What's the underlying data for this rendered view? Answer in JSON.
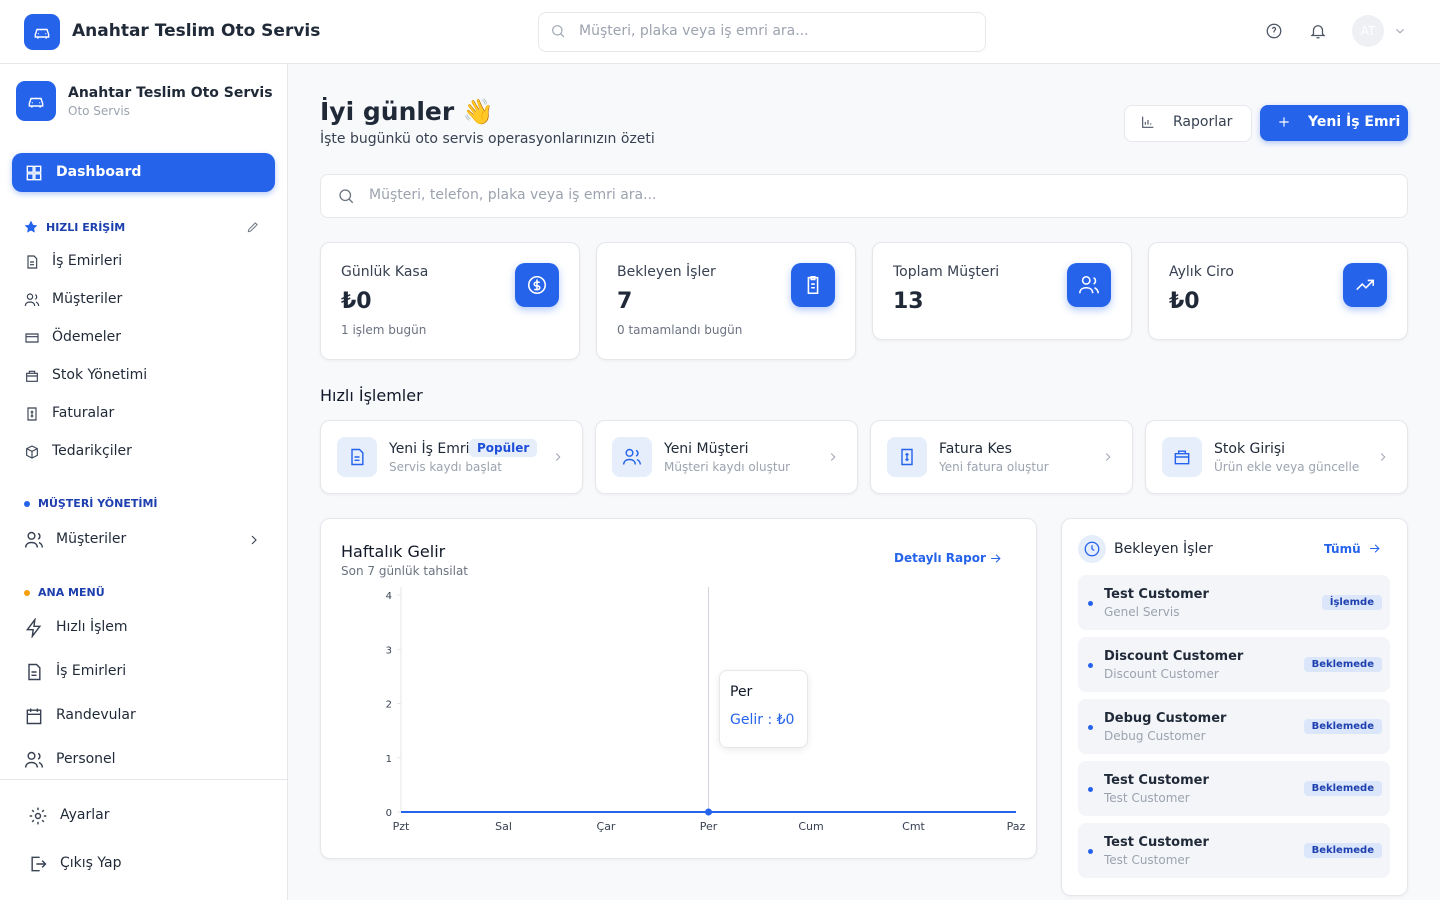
{
  "header": {
    "brand": "Anahtar Teslim Oto Servis",
    "search_placeholder": "Müşteri, plaka veya iş emri ara...",
    "avatar": "AT"
  },
  "sidebar": {
    "brand": "Anahtar Teslim Oto Servis",
    "brand_sub": "Oto Servis",
    "active": "Dashboard",
    "quick_title": "HIZLI ERİŞİM",
    "quick": [
      "İş Emirleri",
      "Müşteriler",
      "Ödemeler",
      "Stok Yönetimi",
      "Faturalar",
      "Tedarikçiler"
    ],
    "customer_title": "MÜŞTERİ YÖNETİMİ",
    "customer_items": [
      "Müşteriler"
    ],
    "main_title": "ANA MENÜ",
    "main": [
      "Hızlı İşlem",
      "İş Emirleri",
      "Randevular",
      "Personel"
    ],
    "footer": [
      "Ayarlar",
      "Çıkış Yap"
    ]
  },
  "main": {
    "greeting": "İyi günler 👋",
    "subtitle": "İşte bugünkü oto servis operasyonlarınızın özeti",
    "buttons": [
      "Raporlar",
      "Yeni İş Emri"
    ],
    "search_placeholder": "Müşteri, telefon, plaka veya iş emri ara...",
    "stats": [
      {
        "label": "Günlük Kasa",
        "value": "₺0",
        "note": "1 işlem bugün"
      },
      {
        "label": "Bekleyen İşler",
        "value": 7,
        "note": "0 tamamlandı bugün"
      },
      {
        "label": "Toplam Müşteri",
        "value": 13
      },
      {
        "label": "Aylık Ciro",
        "value": "₺0"
      }
    ],
    "quick_title": "Hızlı İşlemler",
    "actions": [
      {
        "title": "Yeni İş Emri",
        "subtitle": "Servis kaydı başlat",
        "badge": "Popüler"
      },
      {
        "title": "Yeni Müşteri",
        "subtitle": "Müşteri kaydı oluştur"
      },
      {
        "title": "Fatura Kes",
        "subtitle": "Yeni fatura oluştur"
      },
      {
        "title": "Stok Girişi",
        "subtitle": "Ürün ekle veya güncelle"
      }
    ],
    "pending": {
      "title": "Bekleyen İşler",
      "link": "Tümü",
      "items": [
        {
          "name": "Test Customer",
          "sub": "Genel Servis",
          "status": "İşlemde"
        },
        {
          "name": "Discount Customer",
          "sub": "Discount Customer",
          "status": "Beklemede"
        },
        {
          "name": "Debug Customer",
          "sub": "Debug Customer",
          "status": "Beklemede"
        },
        {
          "name": "Test Customer",
          "sub": "Test Customer",
          "status": "Beklemede"
        },
        {
          "name": "Test Customer",
          "sub": "Test Customer",
          "status": "Beklemede"
        }
      ]
    }
  },
  "chart_data": {
    "type": "line",
    "title": "Haftalık Gelir",
    "subtitle": "Son 7 günlük tahsilat",
    "link": "Detaylı Rapor",
    "categories": [
      "Pzt",
      "Sal",
      "Çar",
      "Per",
      "Cum",
      "Cmt",
      "Paz"
    ],
    "series": [
      {
        "color": "#2563eb",
        "values": [
          0,
          0,
          0,
          0,
          0,
          0,
          0
        ]
      }
    ],
    "ylim": [
      0,
      4
    ],
    "yticks": [
      0,
      1,
      2,
      3,
      4
    ],
    "tooltip": "Gelir : ₺0"
  }
}
